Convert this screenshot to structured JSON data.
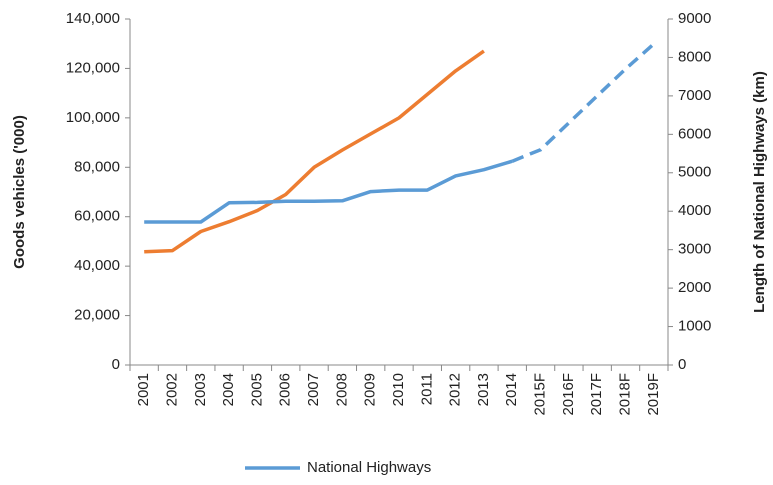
{
  "chart_data": {
    "type": "line",
    "categories": [
      "2001",
      "2002",
      "2003",
      "2004",
      "2005",
      "2006",
      "2007",
      "2008",
      "2009",
      "2010",
      "2011",
      "2012",
      "2013",
      "2014",
      "2015F",
      "2016F",
      "2017F",
      "2018F",
      "2019F"
    ],
    "series": [
      {
        "color": "#ed7d31",
        "values": [
          45800,
          46300,
          54000,
          58000,
          62500,
          69000,
          80000,
          87000,
          93500,
          100000,
          109500,
          119000,
          127000,
          null,
          null,
          null,
          null,
          null,
          null
        ]
      },
      {
        "name": "National Highways",
        "color": "#5b9bd5",
        "axis": "y2",
        "dash_from": "2014",
        "values": [
          3720,
          3720,
          3720,
          4220,
          4230,
          4260,
          4260,
          4270,
          4510,
          4550,
          4550,
          4920,
          5080,
          5300,
          5600,
          6300,
          7000,
          7700,
          8350
        ]
      }
    ],
    "ylabel": "Goods vehicles ('000)",
    "y2label": "Length of National Highways (km)",
    "ylim": [
      0,
      140000
    ],
    "yticks": [
      0,
      {
        "value": 20000,
        "label": "20,000"
      },
      {
        "value": 40000,
        "label": "40,000"
      },
      {
        "value": 60000,
        "label": "60,000"
      },
      {
        "value": 80000,
        "label": "80,000"
      },
      {
        "value": 100000,
        "label": "100,000"
      },
      {
        "value": 120000,
        "label": "120,000"
      },
      {
        "value": 140000,
        "label": "140,000"
      }
    ],
    "y2lim": [
      0,
      9000
    ],
    "y2ticks": [
      0,
      1000,
      2000,
      3000,
      4000,
      5000,
      6000,
      7000,
      8000,
      9000
    ],
    "legend": "bottom"
  }
}
